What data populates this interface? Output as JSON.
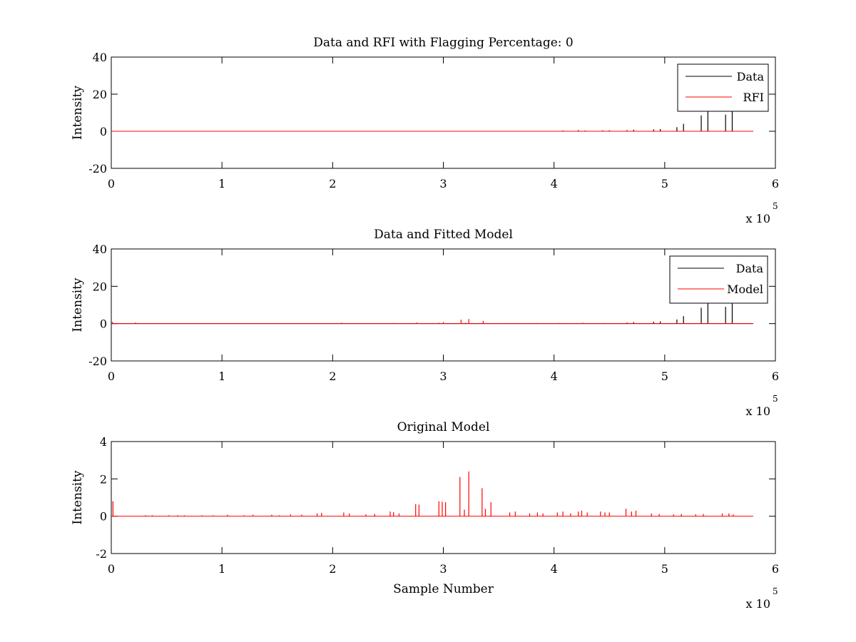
{
  "colors": {
    "data": "#000000",
    "rfi": "#ff0000",
    "model": "#ff0000",
    "background": "#ffffff"
  },
  "chart_data": [
    {
      "type": "line",
      "title": "Data and RFI with Flagging Percentage: 0",
      "xlabel": "",
      "ylabel": "Intensity",
      "xlim": [
        0,
        6
      ],
      "ylim": [
        -20,
        40
      ],
      "xticks": [
        "0",
        "1",
        "2",
        "3",
        "4",
        "5",
        "6"
      ],
      "yticks": [
        "40",
        "20",
        "0",
        "-20"
      ],
      "x_multiplier": {
        "base": "x 10",
        "exponent": "5"
      },
      "legend": {
        "position": "top-right",
        "entries": [
          "Data",
          "RFI"
        ]
      },
      "grid": false,
      "series": [
        {
          "name": "Data",
          "color": "#000000",
          "baseline": 0,
          "x_end": 5.8,
          "x": [
            2.95,
            3.0,
            4.08,
            4.22,
            4.28,
            4.44,
            4.5,
            4.66,
            4.72,
            4.9,
            4.96,
            5.11,
            5.17,
            5.33,
            5.39,
            5.55,
            5.61
          ],
          "y": [
            0.2,
            0.2,
            0.4,
            0.6,
            0.4,
            0.5,
            0.5,
            0.6,
            0.8,
            1.0,
            1.2,
            2.2,
            4.0,
            8.5,
            11.0,
            9.0,
            11.0
          ]
        },
        {
          "name": "RFI",
          "color": "#ff0000",
          "baseline": 0,
          "x_end": 5.8,
          "x": [],
          "y": []
        }
      ]
    },
    {
      "type": "line",
      "title": "Data and Fitted Model",
      "xlabel": "",
      "ylabel": "Intensity",
      "xlim": [
        0,
        6
      ],
      "ylim": [
        -20,
        40
      ],
      "xticks": [
        "0",
        "1",
        "2",
        "3",
        "4",
        "5",
        "6"
      ],
      "yticks": [
        "40",
        "20",
        "0",
        "-20"
      ],
      "x_multiplier": {
        "base": "x 10",
        "exponent": "5"
      },
      "legend": {
        "position": "top-right",
        "entries": [
          "Data",
          "Model"
        ]
      },
      "grid": false,
      "series": [
        {
          "name": "Data",
          "color": "#000000",
          "baseline": 0,
          "x_end": 5.8,
          "x": [
            0.01,
            0.22,
            2.08,
            2.55,
            2.96,
            3.2,
            3.36,
            3.62,
            3.84,
            4.05,
            4.26,
            4.45,
            4.66,
            4.72,
            4.9,
            4.96,
            5.11,
            5.17,
            5.33,
            5.39,
            5.55,
            5.61
          ],
          "y": [
            0.8,
            0.5,
            0.4,
            0.3,
            0.4,
            0.4,
            0.4,
            0.3,
            0.3,
            0.3,
            0.4,
            0.3,
            0.6,
            0.8,
            1.0,
            1.2,
            2.2,
            4.0,
            8.5,
            11.0,
            9.0,
            11.0
          ]
        },
        {
          "name": "Model",
          "color": "#ff0000",
          "baseline": 0,
          "x_end": 5.8,
          "x": [
            0.01,
            2.76,
            3.0,
            3.16,
            3.23,
            3.36,
            4.26,
            4.66
          ],
          "y": [
            0.8,
            0.6,
            0.8,
            2.1,
            2.4,
            1.5,
            0.3,
            0.4
          ]
        }
      ]
    },
    {
      "type": "line",
      "title": "Original Model",
      "xlabel": "Sample Number",
      "ylabel": "Intensity",
      "xlim": [
        0,
        6
      ],
      "ylim": [
        -2,
        4
      ],
      "xticks": [
        "0",
        "1",
        "2",
        "3",
        "4",
        "5",
        "6"
      ],
      "yticks": [
        "4",
        "2",
        "0",
        "-2"
      ],
      "x_multiplier": {
        "base": "x 10",
        "exponent": "5"
      },
      "grid": false,
      "series": [
        {
          "name": "Model",
          "color": "#ff0000",
          "baseline": 0,
          "x_end": 5.8,
          "x": [
            0.015,
            0.31,
            0.37,
            0.52,
            0.6,
            0.66,
            0.82,
            0.92,
            1.05,
            1.2,
            1.28,
            1.45,
            1.52,
            1.62,
            1.72,
            1.86,
            1.9,
            2.1,
            2.15,
            2.3,
            2.38,
            2.52,
            2.55,
            2.6,
            2.75,
            2.78,
            2.96,
            2.99,
            3.02,
            3.15,
            3.19,
            3.23,
            3.35,
            3.38,
            3.43,
            3.6,
            3.65,
            3.78,
            3.85,
            3.9,
            4.03,
            4.08,
            4.15,
            4.22,
            4.25,
            4.3,
            4.42,
            4.46,
            4.5,
            4.65,
            4.7,
            4.74,
            4.88,
            4.95,
            5.08,
            5.15,
            5.28,
            5.35,
            5.52,
            5.58,
            5.62
          ],
          "y": [
            0.8,
            0.05,
            0.05,
            0.05,
            0.05,
            0.05,
            0.05,
            0.05,
            0.08,
            0.05,
            0.08,
            0.08,
            0.05,
            0.1,
            0.08,
            0.15,
            0.18,
            0.2,
            0.15,
            0.1,
            0.12,
            0.25,
            0.22,
            0.15,
            0.65,
            0.62,
            0.8,
            0.78,
            0.75,
            2.1,
            0.35,
            2.4,
            1.5,
            0.4,
            0.75,
            0.2,
            0.25,
            0.15,
            0.2,
            0.15,
            0.2,
            0.25,
            0.15,
            0.25,
            0.3,
            0.2,
            0.25,
            0.2,
            0.2,
            0.4,
            0.25,
            0.3,
            0.15,
            0.12,
            0.1,
            0.12,
            0.1,
            0.12,
            0.15,
            0.15,
            0.1
          ]
        }
      ]
    }
  ]
}
